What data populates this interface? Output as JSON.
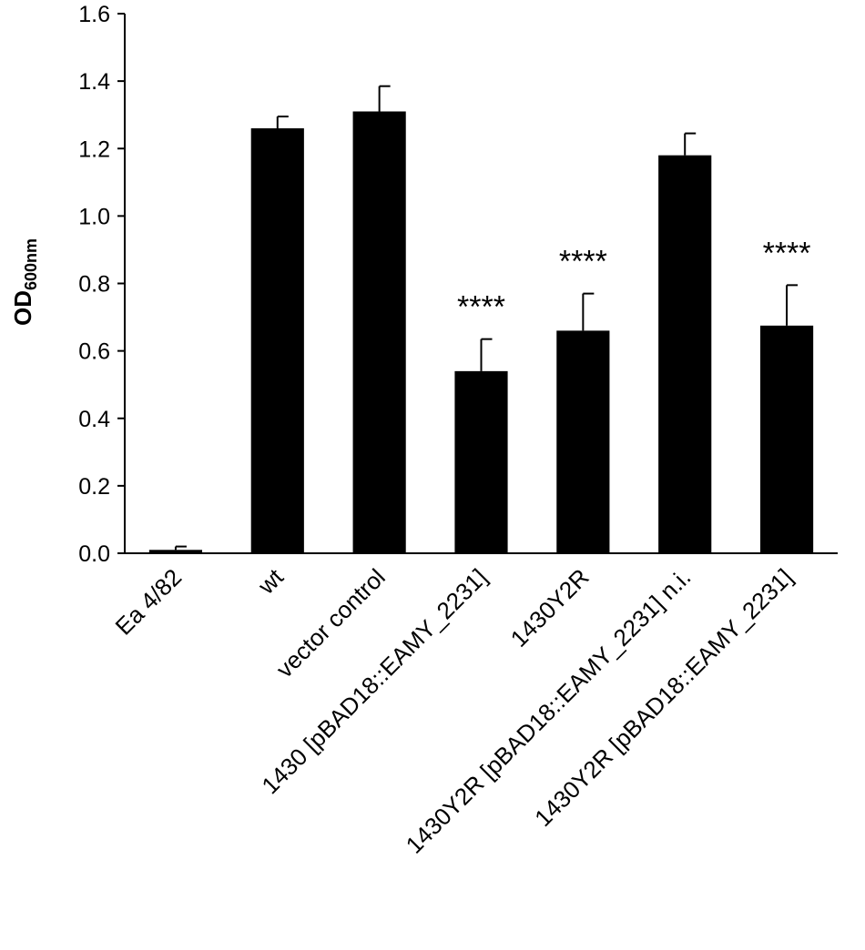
{
  "chart_data": {
    "type": "bar",
    "ylabel": {
      "text": "OD",
      "subscript": "600nm"
    },
    "categories": [
      "Ea 4/82",
      "wt",
      "vector control",
      "1430 [pBAD18::EAMY_2231]",
      "1430Y2R",
      "1430Y2R [pBAD18::EAMY_2231] n.i.",
      "1430Y2R [pBAD18::EAMY_2231]"
    ],
    "values": [
      0.01,
      1.26,
      1.31,
      0.54,
      0.66,
      1.18,
      0.675
    ],
    "errors": [
      0.01,
      0.035,
      0.075,
      0.095,
      0.11,
      0.065,
      0.12
    ],
    "color": "#000000",
    "annotations": [
      {
        "category": "1430 [pBAD18::EAMY_2231]",
        "text": "****"
      },
      {
        "category": "1430Y2R",
        "text": "****"
      },
      {
        "category": "1430Y2R [pBAD18::EAMY_2231]",
        "text": "****"
      }
    ],
    "ylim": [
      0,
      1.6
    ],
    "yticks": [
      {
        "value": 0,
        "label": "0.0"
      },
      {
        "value": 0.2,
        "label": "0.2"
      },
      {
        "value": 0.4,
        "label": "0.4"
      },
      {
        "value": 0.6,
        "label": "0.6"
      },
      {
        "value": 0.8,
        "label": "0.8"
      },
      {
        "value": 1.0,
        "label": "1.0"
      },
      {
        "value": 1.2,
        "label": "1.2"
      },
      {
        "value": 1.4,
        "label": "1.4"
      },
      {
        "value": 1.6,
        "label": "1.6"
      }
    ],
    "grid": false
  }
}
